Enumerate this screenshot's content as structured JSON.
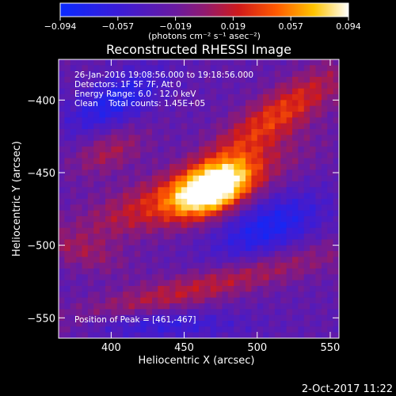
{
  "chart_data": {
    "type": "heatmap",
    "title": "Reconstructed RHESSI Image",
    "xlabel": "Heliocentric X (arcsec)",
    "ylabel": "Heliocentric Y (arcsec)",
    "xlim": [
      364,
      556
    ],
    "ylim": [
      -564,
      -372
    ],
    "xticks": [
      400,
      450,
      500,
      550
    ],
    "yticks": [
      -400,
      -450,
      -500,
      -550
    ],
    "colorbar": {
      "colormap": "blue-purple-red-yellow-white",
      "range": [
        -0.094,
        0.094
      ],
      "ticks": [
        "-0.094",
        "-0.057",
        "-0.019",
        "0.019",
        "0.057",
        "0.094"
      ],
      "label": "(photons cm⁻² s⁻¹ asec⁻²)"
    },
    "annotations": [
      "26-Jan-2016 19:08:56.000 to 19:18:56.000",
      "Detectors: 1F 5F 7F, Att 0",
      "Energy Range: 6.0 - 12.0 keV",
      "Clean    Total counts: 1.45E+05"
    ],
    "peak_label": "Position of Peak = [461,-467]",
    "peak": [
      461,
      -467
    ],
    "grid": false
  },
  "footer": {
    "timestamp": "2-Oct-2017 11:22"
  }
}
